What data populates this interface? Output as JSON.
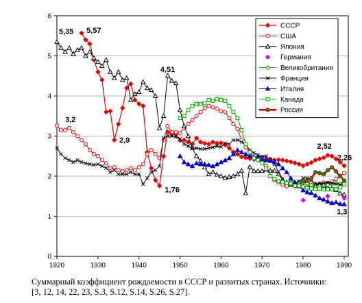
{
  "chart_data": {
    "type": "line",
    "title": "",
    "xlabel": "",
    "ylabel": "",
    "xlim": [
      1920,
      1991
    ],
    "ylim": [
      0,
      6
    ],
    "xticks": [
      1920,
      1930,
      1940,
      1950,
      1960,
      1970,
      1980,
      1990
    ],
    "yticks": [
      0,
      1,
      2,
      3,
      4,
      5,
      6
    ],
    "grid": "horizontal",
    "legend_position": "top-right",
    "series": [
      {
        "name": "СССР",
        "color": "#e00000",
        "marker": "diamond",
        "filled": true,
        "width": 1.2,
        "x": [
          1926,
          1927,
          1928,
          1929,
          1930,
          1931,
          1932,
          1933,
          1934,
          1935,
          1936,
          1937,
          1938,
          1939,
          1940,
          1941,
          1942,
          1943,
          1944,
          1945,
          1946,
          1947,
          1948,
          1949,
          1950,
          1951,
          1952,
          1953,
          1954,
          1955,
          1956,
          1957,
          1958,
          1959,
          1960,
          1961,
          1962,
          1963,
          1964,
          1965,
          1966,
          1967,
          1968,
          1969,
          1970,
          1971,
          1972,
          1973,
          1974,
          1975,
          1976,
          1977,
          1978,
          1979,
          1980,
          1981,
          1982,
          1983,
          1984,
          1985,
          1986,
          1987,
          1988,
          1989,
          1990
        ],
        "y": [
          5.57,
          5.4,
          5.3,
          4.9,
          4.6,
          4.4,
          3.6,
          3.62,
          2.9,
          3.3,
          3.7,
          4.2,
          4.3,
          3.9,
          3.8,
          3.75,
          2.6,
          2.2,
          1.9,
          1.76,
          2.5,
          3.1,
          3.05,
          3.05,
          2.89,
          2.9,
          2.85,
          2.8,
          2.95,
          2.85,
          2.82,
          2.8,
          2.85,
          2.82,
          2.83,
          2.78,
          2.7,
          2.6,
          2.55,
          2.48,
          2.46,
          2.44,
          2.42,
          2.4,
          2.4,
          2.42,
          2.42,
          2.4,
          2.41,
          2.4,
          2.38,
          2.36,
          2.33,
          2.3,
          2.26,
          2.3,
          2.34,
          2.4,
          2.43,
          2.46,
          2.52,
          2.5,
          2.43,
          2.35,
          2.26
        ]
      },
      {
        "name": "США",
        "color": "#e00000",
        "marker": "circle",
        "filled": false,
        "width": 1,
        "x": [
          1920,
          1921,
          1922,
          1923,
          1924,
          1925,
          1926,
          1927,
          1928,
          1929,
          1930,
          1931,
          1932,
          1933,
          1934,
          1935,
          1936,
          1937,
          1938,
          1939,
          1940,
          1941,
          1942,
          1943,
          1944,
          1945,
          1946,
          1947,
          1948,
          1949,
          1950,
          1951,
          1952,
          1953,
          1954,
          1955,
          1956,
          1957,
          1958,
          1959,
          1960,
          1961,
          1962,
          1963,
          1964,
          1965,
          1966,
          1967,
          1968,
          1969,
          1970,
          1971,
          1972,
          1973,
          1974,
          1975,
          1976,
          1977,
          1978,
          1979,
          1980,
          1981,
          1982,
          1983,
          1984,
          1985,
          1986,
          1987,
          1988,
          1989,
          1990
        ],
        "y": [
          3.26,
          3.15,
          3.15,
          3.2,
          3.1,
          3.0,
          2.9,
          2.8,
          2.65,
          2.55,
          2.5,
          2.4,
          2.32,
          2.2,
          2.22,
          2.15,
          2.12,
          2.15,
          2.2,
          2.15,
          2.22,
          2.3,
          2.55,
          2.65,
          2.55,
          2.45,
          2.9,
          3.25,
          3.1,
          3.1,
          3.08,
          3.2,
          3.3,
          3.4,
          3.5,
          3.6,
          3.7,
          3.75,
          3.72,
          3.68,
          3.62,
          3.6,
          3.45,
          3.3,
          3.18,
          2.9,
          2.72,
          2.55,
          2.45,
          2.45,
          2.48,
          2.25,
          2.0,
          1.9,
          1.85,
          1.78,
          1.75,
          1.78,
          1.75,
          1.8,
          1.84,
          1.82,
          1.83,
          1.8,
          1.8,
          1.84,
          1.83,
          1.87,
          1.93,
          2.0,
          2.08
        ]
      },
      {
        "name": "Япония",
        "color": "#000000",
        "marker": "triangle",
        "filled": false,
        "width": 1,
        "x": [
          1920,
          1921,
          1922,
          1923,
          1924,
          1925,
          1926,
          1927,
          1928,
          1929,
          1930,
          1931,
          1932,
          1933,
          1934,
          1935,
          1936,
          1937,
          1938,
          1939,
          1940,
          1941,
          1942,
          1943,
          1944,
          1945,
          1946,
          1947,
          1948,
          1949,
          1950,
          1951,
          1952,
          1953,
          1954,
          1955,
          1956,
          1957,
          1958,
          1959,
          1960,
          1961,
          1962,
          1963,
          1964,
          1965,
          1966,
          1967,
          1968,
          1969,
          1970,
          1971,
          1972,
          1973,
          1974,
          1975,
          1976,
          1977,
          1978,
          1979,
          1980,
          1981,
          1982,
          1983,
          1984,
          1985,
          1986,
          1987,
          1988,
          1989,
          1990
        ],
        "y": [
          5.35,
          5.2,
          5.1,
          5.2,
          5.05,
          5.15,
          5.2,
          5.0,
          5.1,
          4.95,
          4.85,
          4.75,
          4.9,
          4.6,
          4.45,
          4.6,
          4.4,
          4.45,
          3.9,
          4.05,
          4.1,
          4.35,
          4.2,
          4.15,
          4.0,
          3.2,
          3.5,
          4.51,
          4.38,
          4.32,
          3.65,
          3.25,
          3.0,
          2.7,
          2.5,
          2.38,
          2.22,
          2.05,
          2.1,
          2.04,
          2.0,
          1.96,
          1.98,
          2.0,
          2.05,
          2.14,
          1.58,
          2.23,
          2.13,
          2.13,
          2.13,
          2.16,
          2.14,
          2.14,
          2.05,
          1.91,
          1.85,
          1.8,
          1.79,
          1.77,
          1.75,
          1.74,
          1.77,
          1.8,
          1.81,
          1.76,
          1.72,
          1.69,
          1.66,
          1.57,
          1.54
        ]
      },
      {
        "name": "Германия",
        "color": "#e000e0",
        "marker": "diamond",
        "filled": true,
        "width": 0,
        "x": [
          1980,
          1986,
          1990
        ],
        "y": [
          1.4,
          1.5,
          1.45
        ]
      },
      {
        "name": "Великобритания",
        "color": "#00a000",
        "marker": "diamond",
        "filled": false,
        "width": 1,
        "x": [
          1979,
          1980,
          1981,
          1982,
          1983,
          1984,
          1985,
          1986,
          1987,
          1988,
          1989,
          1990
        ],
        "y": [
          1.86,
          1.9,
          1.82,
          1.78,
          1.77,
          1.77,
          1.79,
          1.78,
          1.81,
          1.82,
          1.81,
          1.84
        ]
      },
      {
        "name": "Франция",
        "color": "#000000",
        "marker": "x",
        "filled": false,
        "width": 1,
        "x": [
          1920,
          1921,
          1922,
          1923,
          1924,
          1925,
          1926,
          1927,
          1928,
          1929,
          1930,
          1931,
          1932,
          1933,
          1934,
          1935,
          1936,
          1937,
          1938,
          1939,
          1940,
          1941,
          1942,
          1943,
          1944,
          1945,
          1946,
          1947,
          1948,
          1949,
          1950,
          1951,
          1952,
          1953,
          1954,
          1955,
          1956,
          1957,
          1958,
          1959,
          1960,
          1961,
          1962,
          1963,
          1964,
          1965,
          1966,
          1967,
          1968,
          1969,
          1970,
          1971,
          1972,
          1973,
          1974,
          1975,
          1976,
          1977,
          1978,
          1979,
          1980,
          1981,
          1982,
          1983,
          1984,
          1985,
          1986,
          1987,
          1988,
          1989,
          1990
        ],
        "y": [
          2.7,
          2.55,
          2.45,
          2.4,
          2.35,
          2.4,
          2.35,
          2.32,
          2.3,
          2.28,
          2.3,
          2.25,
          2.2,
          2.1,
          2.15,
          2.05,
          2.05,
          2.05,
          2.1,
          2.05,
          2.05,
          1.8,
          1.95,
          2.1,
          2.15,
          2.25,
          2.95,
          3.0,
          3.0,
          2.98,
          2.93,
          2.8,
          2.75,
          2.7,
          2.7,
          2.68,
          2.68,
          2.7,
          2.72,
          2.75,
          2.73,
          2.82,
          2.8,
          2.9,
          2.9,
          2.85,
          2.8,
          2.65,
          2.58,
          2.53,
          2.48,
          2.5,
          2.42,
          2.3,
          2.11,
          1.93,
          1.83,
          1.86,
          1.82,
          1.87,
          1.95,
          1.95,
          1.91,
          1.79,
          1.81,
          1.82,
          1.84,
          1.82,
          1.81,
          1.79,
          1.78
        ]
      },
      {
        "name": "Италия",
        "color": "#0000c0",
        "marker": "triangle",
        "filled": true,
        "width": 1,
        "x": [
          1950,
          1951,
          1952,
          1953,
          1954,
          1955,
          1956,
          1957,
          1958,
          1959,
          1960,
          1961,
          1962,
          1963,
          1964,
          1965,
          1966,
          1967,
          1968,
          1969,
          1970,
          1971,
          1972,
          1973,
          1974,
          1975,
          1976,
          1977,
          1978,
          1979,
          1980,
          1981,
          1982,
          1983,
          1984,
          1985,
          1986,
          1987,
          1988,
          1989,
          1990
        ],
        "y": [
          2.5,
          2.35,
          2.3,
          2.25,
          2.32,
          2.3,
          2.3,
          2.28,
          2.25,
          2.3,
          2.35,
          2.4,
          2.45,
          2.55,
          2.65,
          2.6,
          2.55,
          2.5,
          2.48,
          2.5,
          2.42,
          2.4,
          2.38,
          2.35,
          2.3,
          2.2,
          2.1,
          1.95,
          1.85,
          1.75,
          1.65,
          1.6,
          1.58,
          1.52,
          1.45,
          1.42,
          1.37,
          1.33,
          1.35,
          1.31,
          1.3
        ]
      },
      {
        "name": "Канада",
        "color": "#00a000",
        "marker": "square",
        "filled": false,
        "width": 1,
        "x": [
          1950,
          1951,
          1952,
          1953,
          1954,
          1955,
          1956,
          1957,
          1958,
          1959,
          1960,
          1961,
          1962,
          1963,
          1964,
          1965,
          1966,
          1967,
          1968,
          1969,
          1970,
          1971,
          1972,
          1973,
          1974,
          1975,
          1976,
          1977,
          1978,
          1979,
          1980,
          1981,
          1982,
          1983,
          1984,
          1985,
          1986,
          1987,
          1988,
          1989,
          1990
        ],
        "y": [
          3.45,
          3.5,
          3.65,
          3.75,
          3.8,
          3.8,
          3.82,
          3.9,
          3.88,
          3.92,
          3.9,
          3.88,
          3.75,
          3.6,
          3.45,
          3.15,
          2.8,
          2.6,
          2.45,
          2.4,
          2.33,
          2.19,
          2.0,
          1.93,
          1.88,
          1.85,
          1.83,
          1.82,
          1.76,
          1.76,
          1.74,
          1.7,
          1.69,
          1.68,
          1.69,
          1.67,
          1.67,
          1.67,
          1.68,
          1.72,
          1.8
        ]
      },
      {
        "name": "Россия",
        "color": "#b00000",
        "marker": "circle",
        "filled": true,
        "fill": "#00a000",
        "width": 2.5,
        "x": [
          1980,
          1981,
          1982,
          1983,
          1984,
          1985,
          1986,
          1987,
          1988,
          1989,
          1990
        ],
        "y": [
          1.87,
          1.88,
          1.95,
          2.1,
          2.08,
          2.05,
          2.15,
          2.22,
          2.12,
          2.0,
          1.89
        ]
      }
    ],
    "annotations": [
      {
        "text": "5,35",
        "x": 1920.5,
        "y": 5.55
      },
      {
        "text": "5,57",
        "x": 1927.2,
        "y": 5.57
      },
      {
        "text": "3,2",
        "x": 1922.0,
        "y": 3.35
      },
      {
        "text": "2,9",
        "x": 1935.2,
        "y": 2.84
      },
      {
        "text": "4,51",
        "x": 1945.2,
        "y": 4.6
      },
      {
        "text": "1,76",
        "x": 1946.3,
        "y": 1.6
      },
      {
        "text": "2,52",
        "x": 1983.4,
        "y": 2.68
      },
      {
        "text": "2,26",
        "x": 1988.3,
        "y": 2.4
      },
      {
        "text": "1,3",
        "x": 1988.2,
        "y": 1.05
      }
    ]
  },
  "caption": {
    "line1": "Суммарный коэффициент рождаемости в СССР и развитых странах. Источники:",
    "line2": "[3, 12, 14, 22, 23, S.3, S.12, S.14, S.26, S.27]."
  }
}
